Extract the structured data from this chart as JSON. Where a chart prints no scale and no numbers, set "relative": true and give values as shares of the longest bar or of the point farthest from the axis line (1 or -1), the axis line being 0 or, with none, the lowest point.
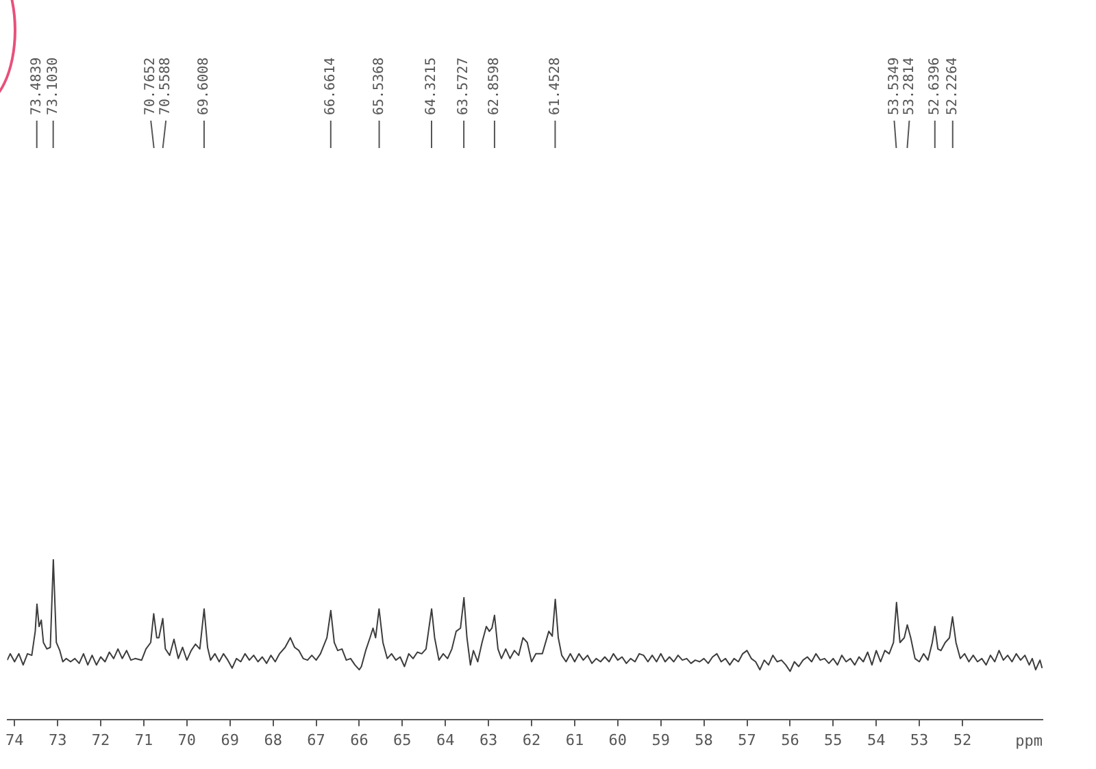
{
  "chart_data": {
    "type": "line",
    "relative": true,
    "xlabel": "ppm",
    "xlim": [
      74.17,
      50.14
    ],
    "xticks": [
      74,
      73,
      72,
      71,
      70,
      69,
      68,
      67,
      66,
      65,
      64,
      63,
      62,
      61,
      60,
      59,
      58,
      57,
      56,
      55,
      54,
      53,
      52
    ],
    "marker": "none",
    "line_style": "solid",
    "series": [
      {
        "color": "#3c3c3c",
        "x": [
          74.17,
          74.1,
          74.0,
          73.9,
          73.8,
          73.7,
          73.6,
          73.52,
          73.48,
          73.43,
          73.38,
          73.33,
          73.25,
          73.17,
          73.1,
          73.03,
          72.95,
          72.88,
          72.8,
          72.7,
          72.6,
          72.5,
          72.4,
          72.3,
          72.2,
          72.1,
          72.0,
          71.9,
          71.8,
          71.7,
          71.6,
          71.5,
          71.4,
          71.3,
          71.2,
          71.05,
          70.95,
          70.84,
          70.77,
          70.7,
          70.65,
          70.56,
          70.5,
          70.4,
          70.3,
          70.2,
          70.1,
          70.0,
          69.9,
          69.8,
          69.7,
          69.6,
          69.52,
          69.45,
          69.35,
          69.25,
          69.15,
          69.05,
          68.95,
          68.85,
          68.75,
          68.65,
          68.55,
          68.45,
          68.35,
          68.25,
          68.15,
          68.05,
          67.95,
          67.85,
          67.72,
          67.6,
          67.5,
          67.4,
          67.3,
          67.2,
          67.1,
          67.0,
          66.9,
          66.75,
          66.66,
          66.58,
          66.5,
          66.4,
          66.3,
          66.2,
          66.1,
          66.0,
          65.95,
          65.85,
          65.75,
          65.68,
          65.62,
          65.54,
          65.45,
          65.35,
          65.25,
          65.15,
          65.05,
          64.95,
          64.85,
          64.75,
          64.65,
          64.55,
          64.45,
          64.32,
          64.25,
          64.15,
          64.05,
          63.95,
          63.85,
          63.75,
          63.65,
          63.57,
          63.5,
          63.42,
          63.35,
          63.25,
          63.15,
          63.05,
          62.98,
          62.92,
          62.86,
          62.78,
          62.7,
          62.6,
          62.5,
          62.4,
          62.3,
          62.2,
          62.1,
          62.0,
          61.9,
          61.75,
          61.6,
          61.52,
          61.45,
          61.38,
          61.3,
          61.2,
          61.1,
          61.0,
          60.9,
          60.8,
          60.7,
          60.6,
          60.5,
          60.4,
          60.3,
          60.2,
          60.1,
          60.0,
          59.9,
          59.8,
          59.7,
          59.6,
          59.5,
          59.4,
          59.3,
          59.2,
          59.1,
          59.0,
          58.9,
          58.8,
          58.7,
          58.6,
          58.5,
          58.4,
          58.3,
          58.2,
          58.1,
          58.0,
          57.9,
          57.8,
          57.7,
          57.6,
          57.5,
          57.4,
          57.3,
          57.2,
          57.1,
          57.0,
          56.9,
          56.8,
          56.7,
          56.6,
          56.5,
          56.4,
          56.3,
          56.2,
          56.1,
          56.0,
          55.9,
          55.8,
          55.7,
          55.6,
          55.5,
          55.4,
          55.3,
          55.2,
          55.1,
          55.0,
          54.9,
          54.8,
          54.7,
          54.6,
          54.5,
          54.4,
          54.3,
          54.2,
          54.1,
          54.0,
          53.9,
          53.8,
          53.7,
          53.6,
          53.53,
          53.45,
          53.35,
          53.28,
          53.2,
          53.1,
          53.0,
          52.9,
          52.8,
          52.7,
          52.64,
          52.57,
          52.5,
          52.4,
          52.3,
          52.23,
          52.15,
          52.05,
          51.95,
          51.85,
          51.75,
          51.65,
          51.55,
          51.45,
          51.35,
          51.25,
          51.15,
          51.05,
          50.95,
          50.85,
          50.75,
          50.65,
          50.55,
          50.45,
          50.38,
          50.3,
          50.2,
          50.15
        ],
        "values": [
          0.37,
          0.41,
          0.36,
          0.41,
          0.34,
          0.41,
          0.4,
          0.55,
          0.72,
          0.58,
          0.62,
          0.48,
          0.44,
          0.45,
          1.0,
          0.48,
          0.43,
          0.36,
          0.38,
          0.36,
          0.38,
          0.35,
          0.41,
          0.34,
          0.4,
          0.34,
          0.39,
          0.36,
          0.42,
          0.38,
          0.44,
          0.38,
          0.43,
          0.37,
          0.38,
          0.37,
          0.44,
          0.48,
          0.66,
          0.51,
          0.51,
          0.63,
          0.44,
          0.4,
          0.5,
          0.38,
          0.45,
          0.37,
          0.43,
          0.47,
          0.44,
          0.69,
          0.45,
          0.37,
          0.41,
          0.36,
          0.41,
          0.37,
          0.32,
          0.38,
          0.36,
          0.41,
          0.37,
          0.4,
          0.36,
          0.39,
          0.35,
          0.4,
          0.36,
          0.41,
          0.45,
          0.51,
          0.45,
          0.43,
          0.38,
          0.37,
          0.4,
          0.37,
          0.41,
          0.51,
          0.68,
          0.48,
          0.43,
          0.44,
          0.37,
          0.38,
          0.34,
          0.31,
          0.33,
          0.43,
          0.51,
          0.57,
          0.51,
          0.69,
          0.48,
          0.38,
          0.41,
          0.37,
          0.39,
          0.33,
          0.41,
          0.38,
          0.42,
          0.41,
          0.44,
          0.69,
          0.51,
          0.37,
          0.41,
          0.38,
          0.44,
          0.55,
          0.57,
          0.76,
          0.51,
          0.34,
          0.43,
          0.36,
          0.48,
          0.58,
          0.55,
          0.57,
          0.65,
          0.44,
          0.38,
          0.44,
          0.38,
          0.43,
          0.4,
          0.51,
          0.48,
          0.36,
          0.41,
          0.41,
          0.55,
          0.52,
          0.75,
          0.51,
          0.4,
          0.36,
          0.41,
          0.36,
          0.41,
          0.37,
          0.4,
          0.35,
          0.38,
          0.36,
          0.39,
          0.36,
          0.41,
          0.37,
          0.39,
          0.35,
          0.38,
          0.36,
          0.41,
          0.4,
          0.36,
          0.4,
          0.36,
          0.41,
          0.36,
          0.39,
          0.36,
          0.4,
          0.37,
          0.38,
          0.35,
          0.37,
          0.36,
          0.38,
          0.35,
          0.39,
          0.41,
          0.36,
          0.38,
          0.34,
          0.38,
          0.36,
          0.41,
          0.43,
          0.38,
          0.36,
          0.31,
          0.37,
          0.34,
          0.4,
          0.36,
          0.37,
          0.34,
          0.3,
          0.36,
          0.33,
          0.37,
          0.39,
          0.36,
          0.41,
          0.37,
          0.38,
          0.35,
          0.38,
          0.34,
          0.4,
          0.36,
          0.38,
          0.34,
          0.39,
          0.36,
          0.42,
          0.34,
          0.43,
          0.36,
          0.43,
          0.41,
          0.48,
          0.73,
          0.48,
          0.51,
          0.59,
          0.51,
          0.38,
          0.36,
          0.41,
          0.37,
          0.48,
          0.58,
          0.44,
          0.43,
          0.48,
          0.51,
          0.64,
          0.48,
          0.38,
          0.41,
          0.36,
          0.4,
          0.36,
          0.38,
          0.34,
          0.4,
          0.36,
          0.43,
          0.37,
          0.4,
          0.36,
          0.41,
          0.37,
          0.4,
          0.34,
          0.38,
          0.31,
          0.37,
          0.32
        ]
      }
    ],
    "annotations": [
      {
        "text": "73.4839",
        "x": 73.4839
      },
      {
        "text": "73.1030",
        "x": 73.103
      },
      {
        "text": "70.7652",
        "x": 70.7652
      },
      {
        "text": "70.5588",
        "x": 70.5588
      },
      {
        "text": "69.6008",
        "x": 69.6008
      },
      {
        "text": "66.6614",
        "x": 66.6614
      },
      {
        "text": "65.5368",
        "x": 65.5368
      },
      {
        "text": "64.3215",
        "x": 64.3215
      },
      {
        "text": "63.5727",
        "x": 63.5727
      },
      {
        "text": "62.8598",
        "x": 62.8598
      },
      {
        "text": "61.4528",
        "x": 61.4528
      },
      {
        "text": "53.5349",
        "x": 53.5349
      },
      {
        "text": "53.2814",
        "x": 53.2814
      },
      {
        "text": "52.6396",
        "x": 52.6396
      },
      {
        "text": "52.2264",
        "x": 52.2264
      }
    ]
  }
}
